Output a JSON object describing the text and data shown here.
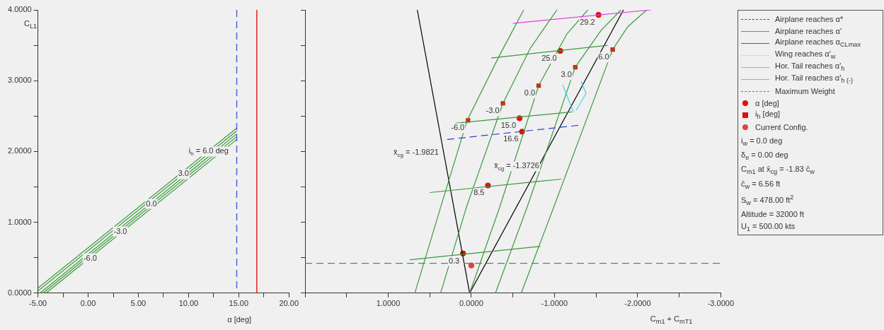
{
  "chart_data": [
    {
      "type": "line",
      "xlabel": "α [deg]",
      "ylabel": "C$_{L1}$",
      "xlim": [
        -5,
        20
      ],
      "ylim": [
        0,
        4
      ],
      "xticks": [
        {
          "value": -5,
          "label": "-5.00"
        },
        {
          "value": -2.5,
          "label": null
        },
        {
          "value": 0,
          "label": "0.00"
        },
        {
          "value": 2.5,
          "label": null
        },
        {
          "value": 5,
          "label": "5.00"
        },
        {
          "value": 7.5,
          "label": null
        },
        {
          "value": 10,
          "label": "10.00"
        },
        {
          "value": 12.5,
          "label": null
        },
        {
          "value": 15,
          "label": "15.00"
        },
        {
          "value": 17.5,
          "label": null
        },
        {
          "value": 20,
          "label": "20.00"
        }
      ],
      "yticks": [
        {
          "value": 0,
          "label": "0.0000"
        },
        {
          "value": 0.5,
          "label": null
        },
        {
          "value": 1,
          "label": "1.0000"
        },
        {
          "value": 1.5,
          "label": null
        },
        {
          "value": 2,
          "label": "2.0000"
        },
        {
          "value": 2.5,
          "label": null
        },
        {
          "value": 3,
          "label": "3.0000"
        },
        {
          "value": 3.5,
          "label": null
        },
        {
          "value": 4,
          "label": "4.0000"
        }
      ],
      "grid": false,
      "legend": false,
      "marker": "none",
      "series": [
        {
          "color": "#3a9a3a",
          "x": [
            -5,
            14.8
          ],
          "values": [
            0.07,
            2.33
          ]
        },
        {
          "color": "#3a9a3a",
          "x": [
            -5,
            14.8
          ],
          "values": [
            0.03,
            2.29
          ]
        },
        {
          "color": "#3a9a3a",
          "x": [
            -4.8,
            14.8
          ],
          "values": [
            0,
            2.25
          ]
        },
        {
          "color": "#3a9a3a",
          "x": [
            -4.5,
            14.8
          ],
          "values": [
            0,
            2.21
          ]
        },
        {
          "color": "#3a9a3a",
          "x": [
            -4.2,
            14.8
          ],
          "values": [
            0,
            2.17
          ]
        }
      ],
      "ref_lines": [
        {
          "axis": "x",
          "value": 14.8,
          "color": "#5060e0",
          "line_style": "dashed"
        },
        {
          "axis": "x",
          "value": 16.8,
          "color": "#e02020",
          "line_style": "solid"
        }
      ],
      "annotations": [
        {
          "text": "i$_{h}$ = 6.0 deg",
          "x": 12,
          "y": 2.01
        },
        {
          "text": "3.0",
          "x": 9.5,
          "y": 1.69
        },
        {
          "text": "0.0",
          "x": 6.3,
          "y": 1.27
        },
        {
          "text": "-3.0",
          "x": 3.2,
          "y": 0.88
        },
        {
          "text": "-6.0",
          "x": 0.2,
          "y": 0.5
        }
      ]
    },
    {
      "type": "line",
      "xlabel": "C$_{m1}$ + C$_{mT1}$",
      "xlim": [
        2,
        -3
      ],
      "ylim": [
        0,
        4
      ],
      "xticks": [
        {
          "value": 2,
          "label": null
        },
        {
          "value": 1.5,
          "label": null
        },
        {
          "value": 1,
          "label": "1.0000"
        },
        {
          "value": 0.5,
          "label": null
        },
        {
          "value": 0,
          "label": "0.0000"
        },
        {
          "value": -0.5,
          "label": null
        },
        {
          "value": -1,
          "label": "-1.0000"
        },
        {
          "value": -1.5,
          "label": null
        },
        {
          "value": -2,
          "label": "-2.0000"
        },
        {
          "value": -2.5,
          "label": null
        },
        {
          "value": -3,
          "label": "-3.0000"
        }
      ],
      "yticks": [
        {
          "value": 0,
          "label": null
        },
        {
          "value": 0.5,
          "label": null
        },
        {
          "value": 1,
          "label": null
        },
        {
          "value": 1.5,
          "label": null
        },
        {
          "value": 2,
          "label": null
        },
        {
          "value": 2.5,
          "label": null
        },
        {
          "value": 3,
          "label": null
        },
        {
          "value": 3.5,
          "label": null
        },
        {
          "value": 4,
          "label": null
        }
      ],
      "tick_labels": "x",
      "grid": false,
      "legend": "right",
      "marker": "none",
      "series": [
        {
          "name": "Airplane reaches α*",
          "color": "#3040d0",
          "line_style": "dashed",
          "x": [
            0.29,
            -1.29
          ],
          "values": [
            2.17,
            2.37
          ]
        },
        {
          "name": "Airplane reaches α'",
          "color": "#e040e0",
          "x": [
            -0.5,
            -2.16
          ],
          "values": [
            3.81,
            4.0
          ]
        },
        {
          "name": "Airplane reaches α$_{CLmax}$",
          "color": "#e02020"
        },
        {
          "name": "Wing reaches α'$_{w}$",
          "color": "#f0e060"
        },
        {
          "name": "Hor. Tail reaches α'$_{h}$",
          "color": "#40d8e0",
          "x": [
            -1.1,
            -1.23
          ],
          "values": [
            2.94,
            2.55
          ]
        },
        {
          "name": "Hor. Tail reaches α'$_{h (-)}$",
          "color": "#40d8e0",
          "x": [
            -1.32,
            -1.38,
            -1.26
          ],
          "values": [
            2.99,
            2.82,
            2.58
          ]
        },
        {
          "name": "Maximum Weight",
          "color": "#3a9a3a",
          "line_style": "dashed",
          "x": [
            2,
            -3
          ],
          "values": [
            0.42,
            0.42
          ]
        },
        {
          "color": "#3a9a3a",
          "x": [
            0.68,
            0.37,
            0.05,
            -0.34,
            -0.63
          ],
          "values": [
            0,
            1.21,
            2.44,
            3.36,
            4.0
          ]
        },
        {
          "color": "#3a9a3a",
          "x": [
            0.37,
            0.06,
            -0.38,
            -0.71,
            -1.03
          ],
          "values": [
            0,
            1.21,
            2.68,
            3.46,
            4.0
          ]
        },
        {
          "color": "#3a9a3a",
          "x": [
            0.02,
            -0.34,
            -0.81,
            -1.15,
            -1.4
          ],
          "values": [
            0,
            1.21,
            2.93,
            3.66,
            4.0
          ]
        },
        {
          "color": "#3a9a3a",
          "x": [
            -0.29,
            -0.67,
            -1.25,
            -1.56,
            -1.8
          ],
          "values": [
            0,
            1.21,
            3.19,
            3.71,
            4.0
          ]
        },
        {
          "color": "#3a9a3a",
          "x": [
            -0.6,
            -0.99,
            -1.7,
            -1.88,
            -2.11
          ],
          "values": [
            0,
            1.21,
            3.44,
            3.76,
            4.0
          ]
        },
        {
          "color": "#3a9a3a",
          "x": [
            0.74,
            -0.83
          ],
          "values": [
            0.47,
            0.66
          ]
        },
        {
          "color": "#3a9a3a",
          "x": [
            0.5,
            -1.08
          ],
          "values": [
            1.42,
            1.61
          ]
        },
        {
          "color": "#3a9a3a",
          "x": [
            0.19,
            -1.21
          ],
          "values": [
            2.4,
            2.56
          ]
        },
        {
          "color": "#3a9a3a",
          "x": [
            -0.24,
            -1.64
          ],
          "values": [
            3.32,
            3.5
          ]
        },
        {
          "color": "#000000",
          "x": [
            0.65,
            0.02
          ],
          "values": [
            4.0,
            0
          ]
        },
        {
          "color": "#000000",
          "x": [
            0.02,
            -1.83
          ],
          "values": [
            0,
            4.0
          ]
        },
        {
          "name": "α [deg]",
          "type": "scatter",
          "marker": "circle",
          "color": "#e01010",
          "x": [
            0.1,
            -0.2,
            -0.58,
            -0.61,
            -1.07,
            -1.53
          ],
          "values": [
            0.56,
            1.52,
            2.47,
            2.28,
            3.42,
            3.93
          ]
        },
        {
          "name": "i$_{h}$ [deg]",
          "type": "scatter",
          "marker": "square",
          "color": "#e01010",
          "x": [
            0.04,
            -0.38,
            -0.81,
            -1.25,
            -1.7
          ],
          "values": [
            2.44,
            2.68,
            2.93,
            3.19,
            3.44
          ]
        },
        {
          "name": "Current Config.",
          "type": "scatter",
          "marker": "circle",
          "color": "#e04040",
          "x": [
            0.0
          ],
          "values": [
            0.39
          ]
        }
      ],
      "annotations": [
        {
          "text": "x̄$_{cg}$ = -1.9821",
          "x": 0.35,
          "y": 2.09
        },
        {
          "text": "x̄$_{cg}$ = -1.3726",
          "x": -0.86,
          "y": 1.9
        },
        {
          "text": "0.3",
          "x": 0.1,
          "y": 0.56
        },
        {
          "text": "8.5",
          "x": -0.2,
          "y": 1.52
        },
        {
          "text": "15.0",
          "x": -0.58,
          "y": 2.47
        },
        {
          "text": "16.6",
          "x": -0.61,
          "y": 2.28
        },
        {
          "text": "25.0",
          "x": -1.07,
          "y": 3.42
        },
        {
          "text": "29.2",
          "x": -1.53,
          "y": 3.93
        },
        {
          "text": "-6.0",
          "x": 0.04,
          "y": 2.44
        },
        {
          "text": "-3.0",
          "x": -0.38,
          "y": 2.68
        },
        {
          "text": "0.0",
          "x": -0.81,
          "y": 2.93
        },
        {
          "text": "3.0",
          "x": -1.25,
          "y": 3.19
        },
        {
          "text": "6.0",
          "x": -1.7,
          "y": 3.44
        },
        "i$_{w}$ = 0.0 deg",
        "δ$_{e}$ = 0.00 deg",
        "C$_{m1}$ at x̄$_{cg}$ = -1.83 c̄$_{w}$",
        "c̄$_{w}$ = 6.56 ft",
        "S$_{w}$ = 478.00 ft$^{2}$",
        "Altitude = 32000 ft",
        "U$_{1}$ = 500.00 kts"
      ]
    }
  ]
}
